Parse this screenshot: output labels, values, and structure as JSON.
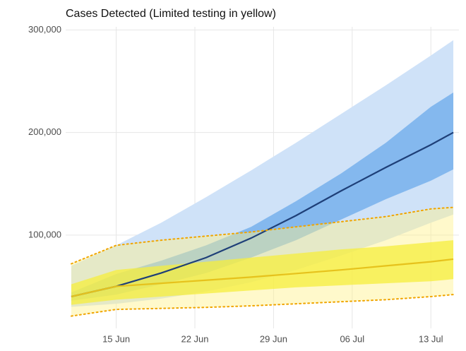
{
  "chart_data": {
    "type": "line",
    "title": "Cases Detected (Limited testing in yellow)",
    "x": [
      "11 Jun",
      "15 Jun",
      "19 Jun",
      "23 Jun",
      "27 Jun",
      "01 Jul",
      "05 Jul",
      "09 Jul",
      "13 Jul",
      "15 Jul"
    ],
    "xlim": [
      "11 Jun",
      "15 Jul"
    ],
    "xticks": [
      "15 Jun",
      "22 Jun",
      "29 Jun",
      "06 Jul",
      "13 Jul"
    ],
    "ylim": [
      9000,
      303000
    ],
    "yticks": [
      {
        "value": 100000,
        "label": "100,000"
      },
      {
        "value": 200000,
        "label": "200,000"
      },
      {
        "value": 300000,
        "label": "300,000"
      }
    ],
    "grid": true,
    "series": [
      {
        "color": "#1e3f78",
        "band_colors": [
          "#cfe2f8",
          "#84b8ee"
        ],
        "values": [
          40000,
          50000,
          63000,
          78000,
          97000,
          119000,
          143000,
          166000,
          188000,
          200000
        ],
        "inner_lower": [
          36000,
          42000,
          52000,
          63000,
          78000,
          95000,
          115000,
          135000,
          153000,
          164000
        ],
        "inner_upper": [
          44000,
          62000,
          75000,
          90000,
          108000,
          133000,
          160000,
          190000,
          225000,
          239000
        ],
        "outer_lower": [
          30000,
          33000,
          38000,
          45000,
          54000,
          66000,
          80000,
          95000,
          112000,
          120000
        ],
        "outer_upper": [
          70000,
          90000,
          112000,
          137000,
          163000,
          190000,
          218000,
          246000,
          275000,
          290000
        ]
      },
      {
        "color": "#e6c21c",
        "band_colors": [
          "rgba(255,242,140,0.45)",
          "rgba(245,238,60,0.75)"
        ],
        "outer_edge_color": "#f0a500",
        "values": [
          40000,
          50000,
          53000,
          56000,
          59000,
          62500,
          66000,
          70000,
          74000,
          76500
        ],
        "inner_lower": [
          32000,
          37000,
          40000,
          43000,
          46000,
          49000,
          51000,
          53000,
          55000,
          57000
        ],
        "inner_upper": [
          52000,
          66000,
          70000,
          74000,
          78000,
          82000,
          86000,
          89000,
          93000,
          95000
        ],
        "outer_lower": [
          21000,
          27500,
          28500,
          29500,
          31000,
          33000,
          35000,
          37000,
          40000,
          42000
        ],
        "outer_upper": [
          72000,
          90000,
          95000,
          99000,
          103000,
          108000,
          113000,
          118000,
          125500,
          127000
        ]
      }
    ]
  }
}
